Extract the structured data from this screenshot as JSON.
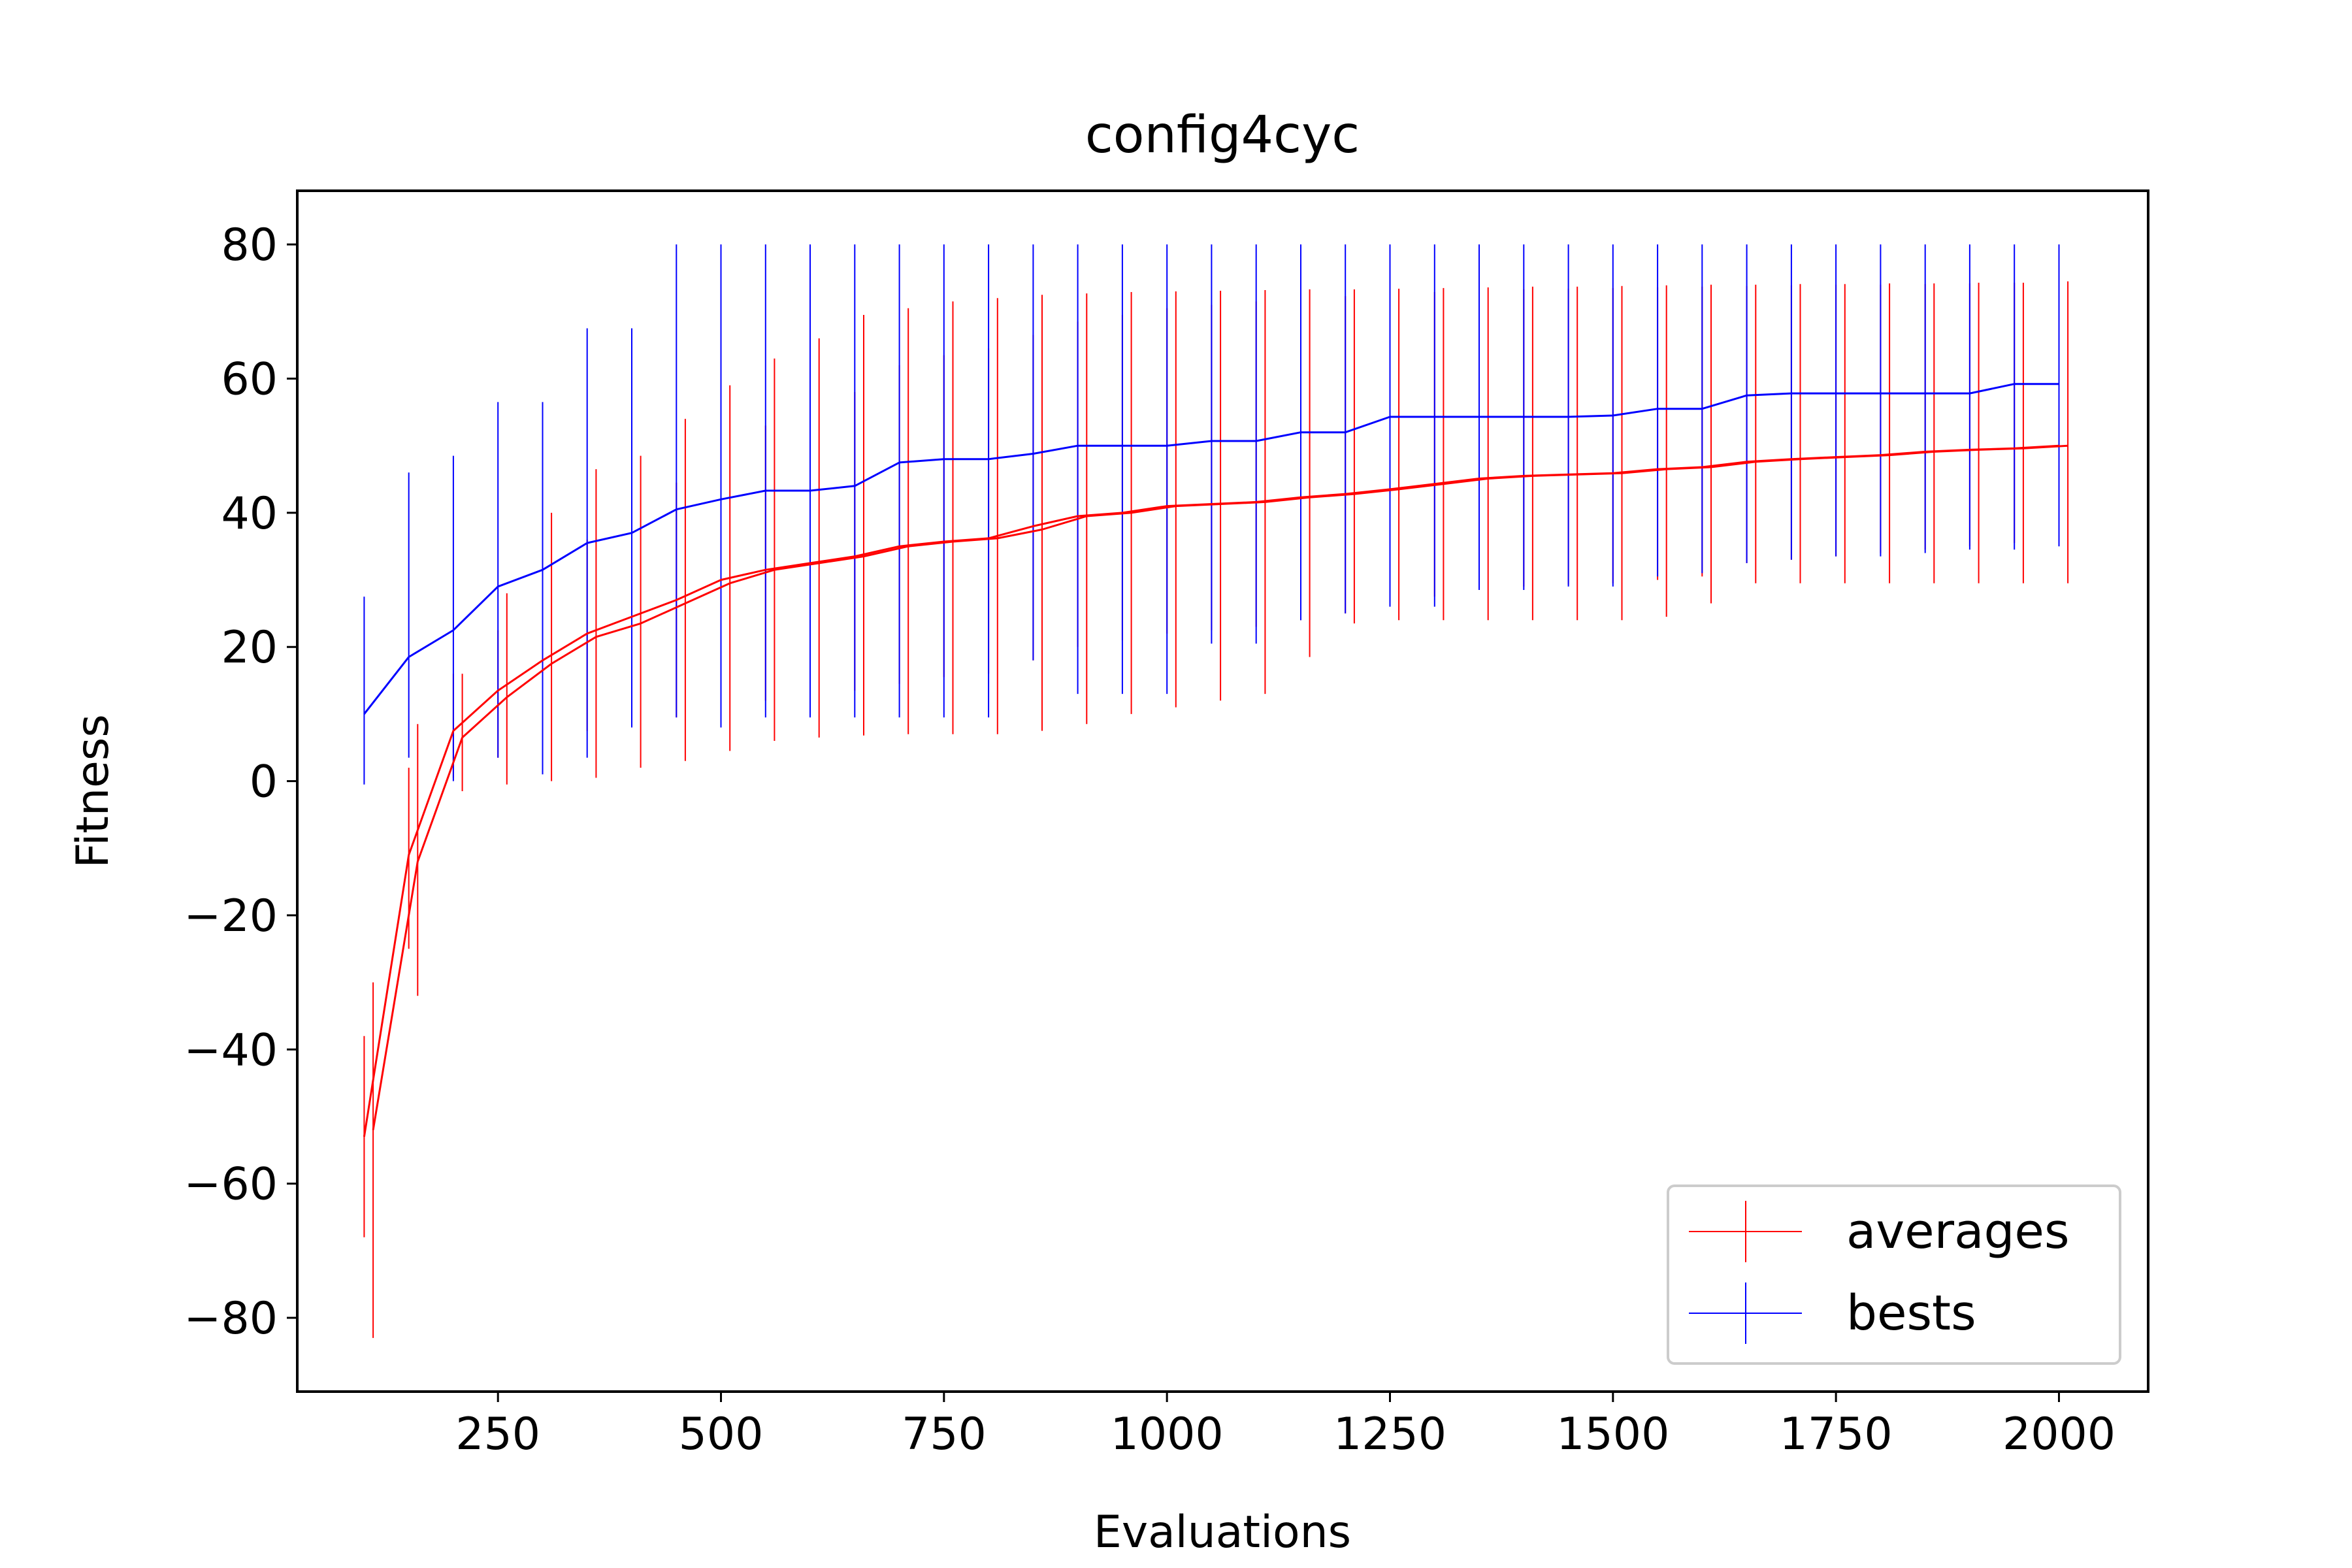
{
  "chart_data": {
    "type": "line",
    "title": "config4cyc",
    "xlabel": "Evaluations",
    "ylabel": "Fitness",
    "xlim": [
      25,
      2100
    ],
    "ylim": [
      -91,
      88
    ],
    "xticks": [
      250,
      500,
      750,
      1000,
      1250,
      1500,
      1750,
      2000
    ],
    "xtick_labels": [
      "250",
      "500",
      "750",
      "1000",
      "1250",
      "1500",
      "1750",
      "2000"
    ],
    "yticks": [
      -80,
      -60,
      -40,
      -20,
      0,
      20,
      40,
      60,
      80
    ],
    "ytick_labels": [
      "−80",
      "−60",
      "−40",
      "−20",
      "0",
      "20",
      "40",
      "60",
      "80"
    ],
    "grid": false,
    "legend_position": "bottom-right",
    "series": [
      {
        "name": "averages",
        "color": "#ff0000",
        "runs": [
          {
            "x": [
              100,
              150,
              200,
              250,
              300,
              350,
              400,
              450,
              500,
              550,
              600,
              650,
              700,
              750,
              800,
              850,
              900,
              950,
              1000,
              1050,
              1100,
              1150,
              1200,
              1250,
              1300,
              1350,
              1400,
              1450,
              1500,
              1550,
              1600,
              1650,
              1700,
              1750,
              1800,
              1850,
              1900,
              1950,
              2000
            ],
            "y": [
              -53,
              -11,
              7.5,
              13.5,
              18,
              22,
              24.5,
              27,
              30,
              31.5,
              32.5,
              33.5,
              35,
              35.7,
              36.2,
              38,
              39.5,
              40,
              41,
              41.3,
              41.6,
              42.3,
              42.8,
              43.5,
              44.3,
              45.1,
              45.5,
              45.7,
              45.9,
              46.5,
              46.8,
              47.6,
              48,
              48.3,
              48.6,
              49.1,
              49.4,
              49.6,
              50
            ],
            "err_low": [
              -68,
              -25,
              0.5,
              3.5,
              6,
              7.5,
              8.5,
              9.5,
              10.5,
              12,
              13,
              13.5,
              14.5,
              15.5,
              16,
              18,
              20,
              21,
              22,
              22.5,
              23,
              24,
              25,
              26.5,
              27.5,
              28.5,
              29,
              29.3,
              29.5,
              30,
              30.5,
              32.5,
              33,
              33.5,
              34,
              34.5,
              35,
              35.5,
              36
            ],
            "err_high": [
              -38,
              2,
              16,
              22.5,
              29,
              36,
              41,
              44.5,
              49,
              53,
              55.5,
              58,
              62,
              63.5,
              64.5,
              66.5,
              68.5,
              69.5,
              70.5,
              71,
              71.5,
              72,
              72.3,
              72.6,
              72.9,
              73.1,
              73.3,
              73.4,
              73.5,
              73.6,
              73.7,
              73.8,
              73.9,
              74,
              74,
              74.1,
              74.2,
              74.3,
              74.5
            ]
          },
          {
            "x": [
              110,
              160,
              210,
              260,
              310,
              360,
              410,
              460,
              510,
              560,
              610,
              660,
              710,
              760,
              810,
              860,
              910,
              960,
              1010,
              1060,
              1110,
              1160,
              1210,
              1260,
              1310,
              1360,
              1410,
              1460,
              1510,
              1560,
              1610,
              1660,
              1710,
              1760,
              1810,
              1860,
              1910,
              1960,
              2010
            ],
            "y": [
              -52,
              -12,
              6.5,
              12.5,
              17.5,
              21.5,
              23.5,
              26.5,
              29.5,
              31.5,
              32.5,
              33.5,
              35,
              35.7,
              36.2,
              37.5,
              39.5,
              40,
              41,
              41.3,
              41.6,
              42.3,
              42.8,
              43.5,
              44.3,
              45.1,
              45.5,
              45.7,
              45.9,
              46.5,
              46.8,
              47.6,
              48,
              48.3,
              48.6,
              49.1,
              49.4,
              49.6,
              50
            ],
            "err_low": [
              -83,
              -32,
              -1.5,
              -0.5,
              0,
              0.5,
              2,
              3,
              4.5,
              6,
              6.5,
              6.8,
              7,
              7,
              7,
              7.5,
              8.5,
              10,
              11,
              12,
              13,
              18.5,
              23.5,
              24,
              24,
              24,
              24,
              24,
              24,
              24.5,
              26.5,
              29.5,
              29.5,
              29.5,
              29.5,
              29.5,
              29.5,
              29.5,
              29.5
            ],
            "err_high": [
              -30,
              8.5,
              16,
              28,
              40,
              46.5,
              48.5,
              54,
              59,
              63,
              66,
              69.5,
              70.5,
              71.5,
              72,
              72.5,
              72.7,
              72.9,
              73,
              73.1,
              73.2,
              73.3,
              73.3,
              73.4,
              73.5,
              73.6,
              73.7,
              73.7,
              73.8,
              73.9,
              74,
              74,
              74.1,
              74.1,
              74.2,
              74.2,
              74.3,
              74.3,
              74.5
            ]
          }
        ]
      },
      {
        "name": "bests",
        "color": "#0000ff",
        "runs": [
          {
            "x": [
              100,
              150,
              200,
              250,
              300,
              350,
              400,
              450,
              500,
              550,
              600,
              650,
              700,
              750,
              800,
              850,
              900,
              950,
              1000,
              1050,
              1100,
              1150,
              1200,
              1250,
              1300,
              1350,
              1400,
              1450,
              1500,
              1550,
              1600,
              1650,
              1700,
              1750,
              1800,
              1850,
              1900,
              1950,
              2000
            ],
            "y": [
              10,
              18.5,
              22.5,
              29,
              31.5,
              35.5,
              37,
              40.5,
              42,
              43.3,
              43.3,
              44,
              47.5,
              48,
              48,
              48.8,
              50,
              50,
              50,
              50.7,
              50.7,
              52,
              52,
              54.3,
              54.3,
              54.3,
              54.3,
              54.3,
              54.5,
              55.5,
              55.5,
              57.5,
              57.8,
              57.8,
              57.8,
              57.8,
              57.8,
              59.2,
              59.2
            ],
            "err_low": [
              -0.5,
              3.5,
              0,
              3.5,
              1,
              3.5,
              8,
              9.5,
              8,
              9.5,
              9.5,
              9.5,
              9.5,
              9.5,
              9.5,
              18,
              13,
              13,
              13,
              20.5,
              20.5,
              24,
              25,
              26,
              26,
              28.5,
              28.5,
              29,
              29,
              30.5,
              31,
              32.5,
              33,
              33.5,
              33.5,
              34,
              34.5,
              34.5,
              35
            ],
            "err_high": [
              27.5,
              46,
              48.5,
              56.5,
              56.5,
              67.5,
              67.5,
              80,
              80,
              80,
              80,
              80,
              80,
              80,
              80,
              80,
              80,
              80,
              80,
              80,
              80,
              80,
              80,
              80,
              80,
              80,
              80,
              80,
              80,
              80,
              80,
              80,
              80,
              80,
              80,
              80,
              80,
              80,
              80
            ]
          }
        ]
      }
    ]
  }
}
